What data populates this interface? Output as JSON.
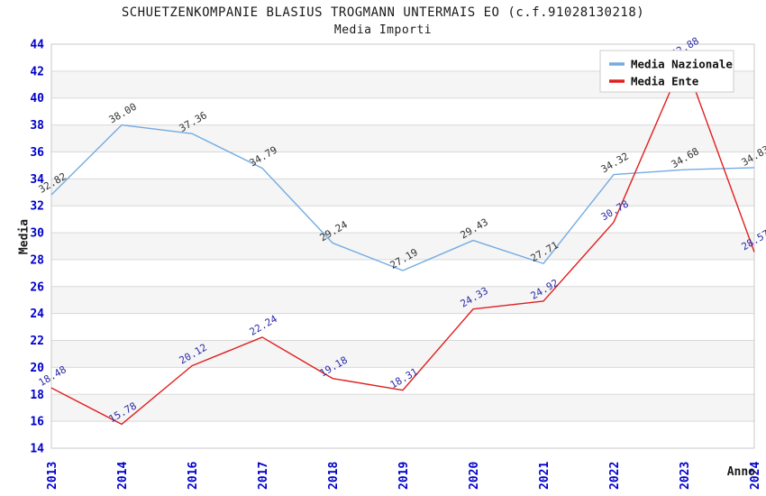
{
  "title": "SCHUETZENKOMPANIE BLASIUS TROGMANN UNTERMAIS EO (c.f.91028130218)",
  "subtitle": "Media Importi",
  "chart_data": {
    "type": "line",
    "categories": [
      "2013",
      "2014",
      "2016",
      "2017",
      "2018",
      "2019",
      "2020",
      "2021",
      "2022",
      "2023",
      "2024"
    ],
    "series": [
      {
        "name": "Media Nazionale",
        "color": "#74ABE2",
        "label_color": "#333333",
        "values": [
          32.82,
          38.0,
          37.36,
          34.79,
          29.24,
          27.19,
          29.43,
          27.71,
          34.32,
          34.68,
          34.83
        ]
      },
      {
        "name": "Media Ente",
        "color": "#E01F1F",
        "label_color": "#2B2BA8",
        "values": [
          18.48,
          15.78,
          20.12,
          22.24,
          19.18,
          18.31,
          24.33,
          24.92,
          30.78,
          42.88,
          28.57
        ]
      }
    ],
    "xlabel": "Anno",
    "ylabel": "Media",
    "ylim": [
      14,
      44
    ],
    "ytick_step": 2,
    "grid": true,
    "legend_position": "top-right",
    "band_fill": "#f5f5f5",
    "gridline_color": "#d9d9d9",
    "plot_border_color": "#c8c8c8",
    "axis_tick_color": "#0000cc",
    "data_label_decimals": 2
  }
}
